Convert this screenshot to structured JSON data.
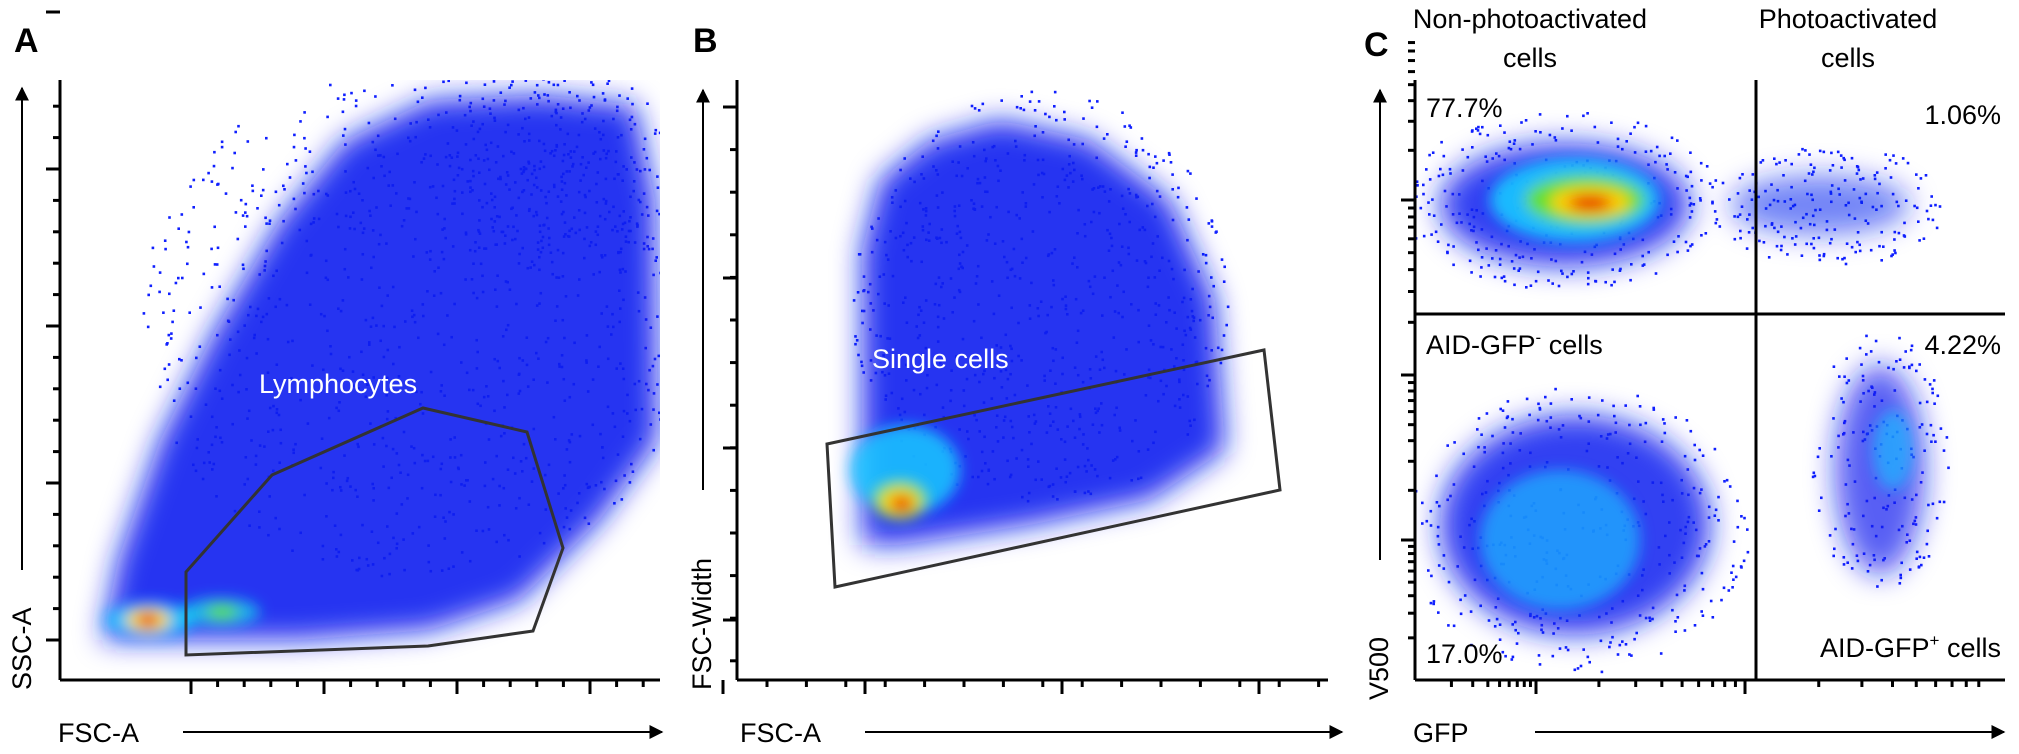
{
  "figure": {
    "panels": [
      {
        "label": "A",
        "xlabel": "FSC-A",
        "ylabel": "SSC-A",
        "gate_label": "Lymphocytes"
      },
      {
        "label": "B",
        "xlabel": "FSC-A",
        "ylabel": "FSC-Width",
        "gate_label": "Single cells"
      },
      {
        "label": "C",
        "xlabel": "GFP",
        "ylabel": "V500",
        "header_left": [
          "Non-photoactivated",
          "cells"
        ],
        "header_right": [
          "Photoactivated",
          "cells"
        ],
        "quadrants": {
          "UL": "77.7%",
          "UR": "1.06%",
          "LL": "17.0%",
          "LR": "4.22%"
        },
        "pop_ll_label": {
          "pre": "AID-GFP",
          "sup": "-",
          "post": " cells"
        },
        "pop_lr_label": {
          "pre": "AID-GFP",
          "sup": "+",
          "post": " cells"
        }
      }
    ]
  },
  "chart_data": [
    {
      "type": "scatter",
      "subtype": "flow-cytometry density plot",
      "panel": "A",
      "xlabel": "FSC-A",
      "ylabel": "SSC-A",
      "gate": "Lymphocytes",
      "colors": {
        "low": "#0000ff",
        "mid": "#00e0ff",
        "high": "#ff0000"
      }
    },
    {
      "type": "scatter",
      "subtype": "flow-cytometry density plot",
      "panel": "B",
      "xlabel": "FSC-A",
      "ylabel": "FSC-Width",
      "gate": "Single cells"
    },
    {
      "type": "scatter",
      "subtype": "flow-cytometry quadrant plot",
      "panel": "C",
      "xlabel": "GFP",
      "ylabel": "V500",
      "scale": "log",
      "quadrant_percent": {
        "upper_left": 77.7,
        "upper_right": 1.06,
        "lower_left": 17.0,
        "lower_right": 4.22
      }
    }
  ]
}
